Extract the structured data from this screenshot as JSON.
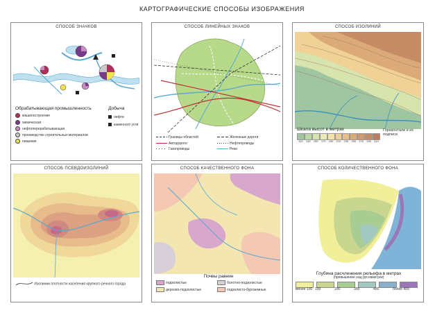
{
  "title": "КАРТОГРАФИЧЕСКИЕ СПОСОБЫ ИЗОБРАЖЕНИЯ",
  "panels": {
    "p1": {
      "title": "СПОСОБ ЗНАЧКОВ",
      "legend_industry_title": "Обрабатывающая промышленность",
      "legend_industry": [
        "машиностроение",
        "химическая",
        "нефтеперерабатывающая",
        "производство строительных материалов",
        "пищевая"
      ],
      "legend_industry_colors": [
        "#b0305a",
        "#7a3a8a",
        "#c48cc0",
        "#c9c9c9",
        "#f0e05a"
      ],
      "legend_mining_title": "Добыча",
      "legend_mining": [
        "нефти",
        "каменного угля"
      ]
    },
    "p2": {
      "title": "СПОСОБ ЛИНЕЙНЫХ ЗНАКОВ",
      "legend": [
        "Границы областей",
        "Железные дороги",
        "Автодороги",
        "Нефтепроводы",
        "Газопроводы",
        "Реки"
      ]
    },
    "p3": {
      "title": "СПОСОБ ИЗОЛИНИЙ",
      "scale_title": "Шкала высот в метрах",
      "scale_values": [
        "110",
        "130",
        "150",
        "170",
        "190",
        "210",
        "230",
        "250",
        "270",
        "290",
        "310"
      ],
      "scale_colors": [
        "#9fc6a0",
        "#bcd7a6",
        "#d7e4ae",
        "#ece9b4",
        "#f4e3a6",
        "#f0d196",
        "#e8bf88",
        "#dcaa78",
        "#d29b6f",
        "#c68c66",
        "#b97d60"
      ],
      "horiz_label": "Горизонтали и их подписи"
    },
    "p4": {
      "title": "СПОСОБ ПСЕВДОИЗОЛИНИЙ",
      "legend": "Изолинии плотности населения крупного речного города"
    },
    "p5": {
      "title": "СПОСОБ КАЧЕСТВЕННОГО ФОНА",
      "legend_title": "Почвы равнин",
      "legend": [
        "подзолистые",
        "болотно-подзолистые",
        "дерново-подзолистые",
        "подзолисто-буроземные"
      ],
      "legend_colors": [
        "#d8a8cc",
        "#d8d0d8",
        "#f4e6b0",
        "#f5c8b4"
      ]
    },
    "p6": {
      "title": "СПОСОБ КОЛИЧЕСТВЕННОГО ФОНА",
      "legend_title": "Глубина расчленения рельефа в метрах",
      "legend_sub": "(превышение над руслами рек)",
      "scale_labels": [
        "менее 100",
        "100",
        "200",
        "300",
        "400",
        "более 400"
      ],
      "scale_colors": [
        "#f2ef9a",
        "#c8d690",
        "#a9cc92",
        "#a2c8c0",
        "#8ab0cc",
        "#9a78b8"
      ]
    }
  }
}
